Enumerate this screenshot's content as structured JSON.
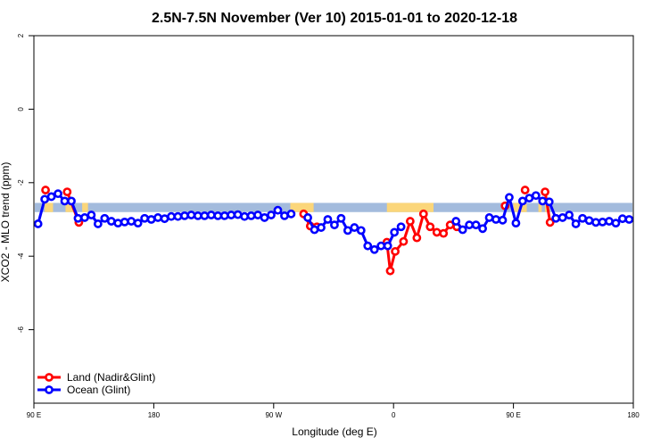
{
  "chart_data": {
    "type": "line",
    "title": "2.5N-7.5N November (Ver 10)   2015-01-01 to 2020-12-18",
    "xlabel": "Longitude (deg E)",
    "ylabel": "XCO2 - MLO trend (ppm)",
    "xlim": [
      90,
      450
    ],
    "ylim": [
      -8,
      2
    ],
    "x_ticks": [
      {
        "value": 90,
        "label": "90 E"
      },
      {
        "value": 162,
        "label": "180"
      },
      {
        "value": 234,
        "label": "90 W"
      },
      {
        "value": 306,
        "label": "0"
      },
      {
        "value": 378,
        "label": "90 E"
      },
      {
        "value": 450,
        "label": "180"
      }
    ],
    "y_ticks": [
      2,
      0,
      -2,
      -4,
      -6
    ],
    "grid": false,
    "legend_position": "bottom-left",
    "colors": {
      "land": "#ff0000",
      "ocean": "#0000ff",
      "band_ocean": "#a3bbdd",
      "band_land": "#fbd67a"
    },
    "surface_band": {
      "y_range": [
        -2.55,
        -2.8
      ],
      "land_segments": [
        [
          96.5,
          101.5
        ],
        [
          109,
          113.5
        ],
        [
          119,
          122.5
        ],
        [
          244,
          258
        ],
        [
          302,
          330
        ],
        [
          378,
          386
        ],
        [
          393,
          395
        ],
        [
          397,
          398
        ]
      ]
    },
    "series": [
      {
        "name": "Land (Nadir&Glint)",
        "color": "#ff0000",
        "points": [
          [
            97,
            -2.2
          ],
          [
            110,
            -2.25
          ],
          [
            117,
            -3.08
          ],
          [
            252,
            -2.85
          ],
          [
            256,
            -3.18
          ],
          [
            260,
            -3.2
          ],
          [
            302,
            -3.62
          ],
          [
            304,
            -4.4
          ],
          [
            307,
            -3.87
          ],
          [
            312,
            -3.6
          ],
          [
            316,
            -3.05
          ],
          [
            320,
            -3.5
          ],
          [
            324,
            -2.85
          ],
          [
            328,
            -3.2
          ],
          [
            332,
            -3.35
          ],
          [
            336,
            -3.38
          ],
          [
            340,
            -3.15
          ],
          [
            344,
            -3.2
          ],
          [
            373,
            -2.63
          ],
          [
            385,
            -2.2
          ],
          [
            397,
            -2.25
          ],
          [
            400,
            -3.08
          ]
        ]
      },
      {
        "name": "Ocean (Glint)",
        "color": "#0000ff",
        "points": [
          [
            92.5,
            -3.12
          ],
          [
            96.5,
            -2.45
          ],
          [
            100.5,
            -2.38
          ],
          [
            104.5,
            -2.3
          ],
          [
            108.5,
            -2.5
          ],
          [
            112.5,
            -2.5
          ],
          [
            116.5,
            -2.97
          ],
          [
            120.5,
            -2.95
          ],
          [
            124.5,
            -2.88
          ],
          [
            128.5,
            -3.12
          ],
          [
            132.5,
            -2.97
          ],
          [
            136.5,
            -3.05
          ],
          [
            140.5,
            -3.1
          ],
          [
            144.5,
            -3.07
          ],
          [
            148.5,
            -3.05
          ],
          [
            152.5,
            -3.1
          ],
          [
            156.5,
            -2.97
          ],
          [
            160.5,
            -3.0
          ],
          [
            164.5,
            -2.95
          ],
          [
            168.5,
            -2.98
          ],
          [
            172.5,
            -2.92
          ],
          [
            176.5,
            -2.92
          ],
          [
            180.5,
            -2.9
          ],
          [
            184.5,
            -2.88
          ],
          [
            188.5,
            -2.9
          ],
          [
            192.5,
            -2.9
          ],
          [
            196.5,
            -2.88
          ],
          [
            200.5,
            -2.9
          ],
          [
            204.5,
            -2.9
          ],
          [
            208.5,
            -2.88
          ],
          [
            212.5,
            -2.87
          ],
          [
            216.5,
            -2.92
          ],
          [
            220.5,
            -2.9
          ],
          [
            224.5,
            -2.88
          ],
          [
            228.5,
            -2.95
          ],
          [
            232.5,
            -2.88
          ],
          [
            236.5,
            -2.75
          ],
          [
            240.5,
            -2.9
          ],
          [
            244.5,
            -2.85
          ],
          [
            254.5,
            -2.95
          ],
          [
            258.5,
            -3.28
          ],
          [
            262.5,
            -3.22
          ],
          [
            266.5,
            -3.0
          ],
          [
            270.5,
            -3.15
          ],
          [
            274.5,
            -2.97
          ],
          [
            278.5,
            -3.3
          ],
          [
            282.5,
            -3.22
          ],
          [
            286.5,
            -3.3
          ],
          [
            290.5,
            -3.72
          ],
          [
            294.5,
            -3.82
          ],
          [
            298.5,
            -3.72
          ],
          [
            302.5,
            -3.72
          ],
          [
            306.5,
            -3.35
          ],
          [
            310.5,
            -3.2
          ],
          [
            343.5,
            -3.05
          ],
          [
            347.5,
            -3.28
          ],
          [
            351.5,
            -3.15
          ],
          [
            355.5,
            -3.15
          ],
          [
            359.5,
            -3.25
          ],
          [
            363.5,
            -2.95
          ],
          [
            367.5,
            -3.0
          ],
          [
            371.5,
            -3.02
          ],
          [
            375.5,
            -2.4
          ],
          [
            379.5,
            -3.1
          ],
          [
            383.5,
            -2.5
          ],
          [
            387.5,
            -2.42
          ],
          [
            391.5,
            -2.35
          ],
          [
            395.5,
            -2.5
          ],
          [
            399.5,
            -2.52
          ],
          [
            403.5,
            -2.97
          ],
          [
            407.5,
            -2.95
          ],
          [
            411.5,
            -2.88
          ],
          [
            415.5,
            -3.12
          ],
          [
            419.5,
            -2.97
          ],
          [
            423.5,
            -3.03
          ],
          [
            427.5,
            -3.08
          ],
          [
            431.5,
            -3.07
          ],
          [
            435.5,
            -3.05
          ],
          [
            439.5,
            -3.1
          ],
          [
            443.5,
            -2.98
          ],
          [
            447.5,
            -3.0
          ]
        ]
      }
    ]
  }
}
